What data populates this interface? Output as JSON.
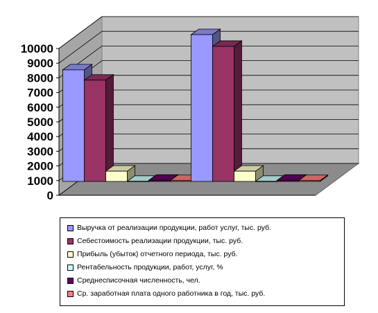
{
  "chart_data": {
    "type": "bar",
    "style": "3d-clustered-column",
    "categories": [
      "",
      ""
    ],
    "series": [
      {
        "name": "Выручка от реализации продукции, работ услуг, тыс. руб.",
        "color": "#9999ff",
        "values": [
          7600,
          10000
        ]
      },
      {
        "name": "Себестоимость реализации продукции, тыс. руб.",
        "color": "#993366",
        "values": [
          6900,
          9200
        ]
      },
      {
        "name": "Прибыль (убыток) отчетного периода, тыс. руб.",
        "color": "#ffffcc",
        "values": [
          700,
          700
        ]
      },
      {
        "name": "Рентабельность продукции, работ, услуг, %",
        "color": "#ccffff",
        "values": [
          10,
          8
        ]
      },
      {
        "name": "Среднесписочная численность, чел.",
        "color": "#660066",
        "values": [
          80,
          80
        ]
      },
      {
        "name": "Ср. заработная плата одного работника в год, тыс. руб.",
        "color": "#ff8080",
        "values": [
          60,
          60
        ]
      }
    ],
    "ylim": [
      0,
      10000
    ],
    "yticks": [
      "0",
      "1000",
      "2000",
      "3000",
      "4000",
      "5000",
      "6000",
      "7000",
      "8000",
      "9000",
      "10000"
    ],
    "grid": true,
    "legend_position": "bottom"
  }
}
